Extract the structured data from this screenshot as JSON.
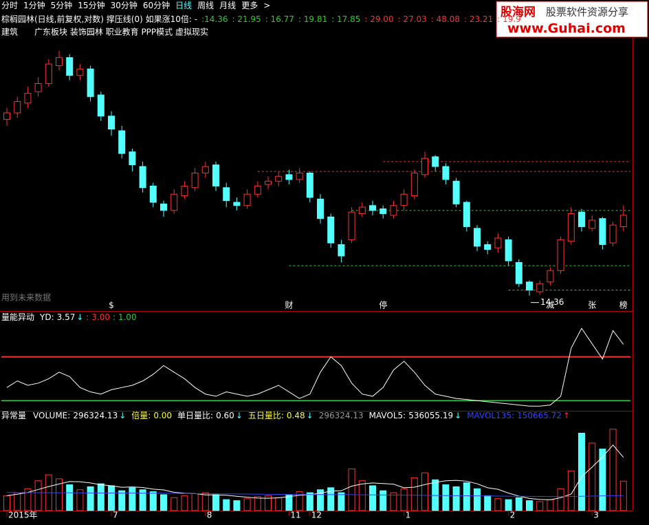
{
  "toolbar": {
    "items": [
      "分时",
      "1分钟",
      "5分钟",
      "15分钟",
      "30分钟",
      "60分钟",
      "日线",
      "周线",
      "月线",
      "更多",
      ">"
    ],
    "active": 6
  },
  "header": {
    "title": "棕榈园林(日线,前复权,对数) 撑压线(0) 如果涨10倍: -",
    "targets": [
      {
        "text": ":14.36",
        "color": "#33cc33"
      },
      {
        "text": ": 21.95",
        "color": "#33cc33"
      },
      {
        "text": ": 16.77",
        "color": "#33cc33"
      },
      {
        "text": ": 19.81",
        "color": "#33cc33"
      },
      {
        "text": ": 17.85",
        "color": "#33cc33"
      },
      {
        "text": ": 29.00",
        "color": "#ff3232"
      },
      {
        "text": ": 27.03",
        "color": "#ff3232"
      },
      {
        "text": ": 48.08",
        "color": "#ff3232"
      },
      {
        "text": ": 23.21",
        "color": "#ff3232"
      },
      {
        "text": ": 19.9",
        "color": "#ff3232"
      }
    ],
    "sector": "建筑",
    "concepts": "广东板块 装饰园林 职业教育 PPP模式 虚拟现实",
    "note": "用到未来数据"
  },
  "logo": {
    "name": "股海网",
    "tagline": "股票软件资源分享",
    "url": "www.Guhai.com"
  },
  "chart_data": [
    {
      "type": "candlestick",
      "up_color": "#ff3232",
      "down_color": "#54ffff",
      "ylim": [
        13.5,
        30
      ],
      "open": [
        25.2,
        25.6,
        26.2,
        26.9,
        27.4,
        28.5,
        29.0,
        27.9,
        28.3,
        26.7,
        25.4,
        24.5,
        23.2,
        22.3,
        21.1,
        20.0,
        19.6,
        20.5,
        21.0,
        21.9,
        22.4,
        21.0,
        20.1,
        19.9,
        20.6,
        21.2,
        21.4,
        21.8,
        21.5,
        21.9,
        20.3,
        19.2,
        17.5,
        17.8,
        19.4,
        19.9,
        19.7,
        19.3,
        19.9,
        20.5,
        21.8,
        22.9,
        22.3,
        21.4,
        20.1,
        18.5,
        17.5,
        17.3,
        17.8,
        16.4,
        15.2,
        14.6,
        15.2,
        15.9,
        17.7,
        19.5,
        18.5,
        19.1,
        17.6,
        18.6
      ],
      "high": [
        25.9,
        26.6,
        27.2,
        27.8,
        28.9,
        29.4,
        29.2,
        28.6,
        28.5,
        26.9,
        25.7,
        24.8,
        23.4,
        22.6,
        21.3,
        20.2,
        20.9,
        21.4,
        22.2,
        22.6,
        22.6,
        21.3,
        20.4,
        20.9,
        21.4,
        21.7,
        22.0,
        22.1,
        22.2,
        22.0,
        20.6,
        19.4,
        17.8,
        19.8,
        20.1,
        20.2,
        19.9,
        20.2,
        20.9,
        22.1,
        23.2,
        23.0,
        22.5,
        21.6,
        20.2,
        18.7,
        17.7,
        18.2,
        18.0,
        16.6,
        15.3,
        15.3,
        16.1,
        18.0,
        19.8,
        19.7,
        19.3,
        19.2,
        18.9,
        19.9
      ],
      "low": [
        24.8,
        25.3,
        25.9,
        26.6,
        27.2,
        28.2,
        27.6,
        27.6,
        26.3,
        25.1,
        24.2,
        22.8,
        22.0,
        20.7,
        19.8,
        19.2,
        19.4,
        20.3,
        20.8,
        21.6,
        20.8,
        19.8,
        19.6,
        19.7,
        20.4,
        20.9,
        21.1,
        21.2,
        21.3,
        20.1,
        18.8,
        17.3,
        16.4,
        17.6,
        19.2,
        19.3,
        19.1,
        19.1,
        19.6,
        20.3,
        21.6,
        22.0,
        21.2,
        19.8,
        18.3,
        17.1,
        16.9,
        17.0,
        16.2,
        14.9,
        14.36,
        14.4,
        15.0,
        15.7,
        17.5,
        18.3,
        18.3,
        17.2,
        17.4,
        18.3
      ],
      "close": [
        25.6,
        26.3,
        26.8,
        27.4,
        28.6,
        29.0,
        27.9,
        28.3,
        26.6,
        25.4,
        24.6,
        23.1,
        22.4,
        21.0,
        20.1,
        19.6,
        20.6,
        21.1,
        21.9,
        22.3,
        21.1,
        20.2,
        19.9,
        20.6,
        21.1,
        21.4,
        21.7,
        21.5,
        21.9,
        20.4,
        19.1,
        17.6,
        16.8,
        19.5,
        19.8,
        19.6,
        19.4,
        19.9,
        20.6,
        21.9,
        22.8,
        22.3,
        21.5,
        20.0,
        18.6,
        17.4,
        17.2,
        17.9,
        16.5,
        15.1,
        14.7,
        15.1,
        15.9,
        17.8,
        19.4,
        18.6,
        19.0,
        17.5,
        18.7,
        19.3
      ],
      "low_marker": 50,
      "levels": [
        {
          "value": 22.6,
          "from": 36,
          "color": "#ff3232"
        },
        {
          "value": 22.0,
          "from": 24,
          "color": "#ff3232"
        },
        {
          "value": 19.6,
          "from": 33,
          "color": "#33cc33"
        },
        {
          "value": 16.2,
          "from": 27,
          "color": "#33cc33"
        },
        {
          "value": 14.7,
          "from": 48,
          "color": "#33cc33"
        }
      ],
      "signals": [
        {
          "x": 10,
          "label": "$",
          "color": "#ff3232"
        },
        {
          "x": 27,
          "label": "财",
          "color": "#3399ff"
        },
        {
          "x": 36,
          "label": "停",
          "color": "#3399ff"
        },
        {
          "x": 52,
          "label": "减",
          "color": "#33cc33"
        },
        {
          "x": 56,
          "label": "张",
          "color": "#ff3232"
        },
        {
          "x": 59,
          "label": "榜",
          "color": "#ff3232"
        }
      ]
    },
    {
      "type": "line",
      "title": "量能异动",
      "ylim": [
        0.6,
        5
      ],
      "series": [
        {
          "name": "YD:",
          "trend": "↓",
          "color": "#ffffff",
          "values": [
            1.6,
            1.9,
            1.7,
            1.8,
            2.0,
            2.3,
            2.1,
            1.6,
            1.4,
            1.3,
            1.5,
            1.6,
            1.7,
            1.9,
            2.2,
            2.6,
            2.3,
            2.0,
            1.6,
            1.3,
            1.2,
            1.4,
            1.3,
            1.2,
            1.3,
            1.5,
            1.7,
            1.4,
            1.1,
            1.3,
            2.3,
            3.0,
            2.6,
            1.8,
            1.3,
            1.2,
            1.6,
            2.4,
            2.8,
            2.3,
            1.7,
            1.3,
            1.2,
            1.1,
            1.05,
            1.0,
            0.95,
            0.9,
            0.85,
            0.8,
            0.75,
            0.75,
            0.8,
            1.2,
            3.4,
            4.3,
            3.6,
            2.9,
            4.2,
            3.57
          ]
        }
      ],
      "refs": [
        {
          "value": 3,
          "label": ": 3.00",
          "color": "#ff3232"
        },
        {
          "value": 1,
          "label": ": 1.00",
          "color": "#33cc33"
        }
      ]
    },
    {
      "type": "bar",
      "title": "异常量",
      "ylim": [
        0,
        950000
      ],
      "series": [
        {
          "name": "VOLUME:",
          "trend": "↓",
          "color": "#ffffff",
          "values": [
            150000,
            180000,
            220000,
            300000,
            360000,
            320000,
            260000,
            210000,
            240000,
            270000,
            250000,
            200000,
            230000,
            210000,
            190000,
            160000,
            130000,
            150000,
            170000,
            180000,
            160000,
            110000,
            100000,
            120000,
            140000,
            150000,
            130000,
            160000,
            190000,
            180000,
            210000,
            230000,
            180000,
            420000,
            300000,
            250000,
            200000,
            180000,
            220000,
            330000,
            380000,
            310000,
            260000,
            240000,
            280000,
            220000,
            150000,
            120000,
            110000,
            130000,
            100000,
            90000,
            110000,
            220000,
            400000,
            780000,
            680000,
            620000,
            820000,
            296324.13
          ]
        },
        {
          "name": "MAVOL5:",
          "trend": "↓",
          "color": "#ffffff",
          "values": [
            150000,
            165000,
            183000,
            212000,
            242000,
            268000,
            292000,
            290000,
            278000,
            260000,
            250000,
            234000,
            238000,
            232000,
            216000,
            208000,
            184000,
            174000,
            172000,
            158000,
            158000,
            154000,
            144000,
            134000,
            126000,
            124000,
            128000,
            140000,
            154000,
            160000,
            174000,
            196000,
            200000,
            246000,
            268000,
            278000,
            272000,
            266000,
            230000,
            236000,
            262000,
            284000,
            300000,
            304000,
            296000,
            270000,
            230000,
            214000,
            176000,
            146000,
            122000,
            112000,
            108000,
            130000,
            166000,
            340000,
            438000,
            540000,
            660000,
            536055.19
          ]
        },
        {
          "name": "MAVOL135:",
          "trend": "↑",
          "color": "#3344ff",
          "values": [
            182000,
            181000,
            181000,
            180000,
            180000,
            179000,
            179000,
            178000,
            178000,
            177000,
            177000,
            176000,
            176000,
            175000,
            175000,
            174000,
            173000,
            172000,
            171000,
            170000,
            169000,
            168000,
            167000,
            166000,
            165000,
            164000,
            163000,
            162000,
            162000,
            161000,
            161000,
            160000,
            160000,
            160000,
            159000,
            158000,
            157000,
            156000,
            155000,
            154000,
            153000,
            152000,
            151000,
            150000,
            149000,
            148000,
            147000,
            146000,
            145000,
            144000,
            143000,
            142000,
            141000,
            141000,
            142000,
            144000,
            146000,
            148000,
            150000,
            150665.72
          ]
        }
      ],
      "info": [
        {
          "label": "倍量:",
          "text": "0.00",
          "color": "#ffff33"
        },
        {
          "label": "单日量比:",
          "text": "0.60",
          "trend": "↓",
          "color": "#ffffff"
        },
        {
          "label": "五日量比:",
          "text": "0.48",
          "trend": "↓",
          "color": "#ffff33"
        }
      ],
      "xticks": [
        {
          "value": 0,
          "label": "2015年"
        },
        {
          "value": 10,
          "label": "7"
        },
        {
          "value": 19,
          "label": "8"
        },
        {
          "value": 27,
          "label": "11"
        },
        {
          "value": 29,
          "label": "12"
        },
        {
          "value": 38,
          "label": "1"
        },
        {
          "value": 48,
          "label": "2"
        },
        {
          "value": 56,
          "label": "3"
        }
      ]
    }
  ]
}
